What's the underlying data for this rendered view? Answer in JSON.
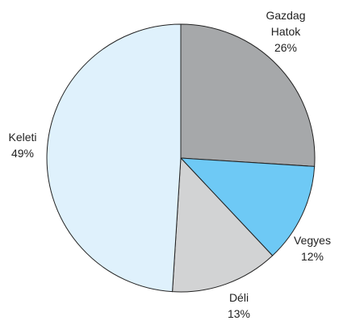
{
  "chart_data": {
    "type": "pie",
    "title": "",
    "slices": [
      {
        "lines": [
          "Gazdag",
          "Hatok",
          "26%"
        ],
        "value": 26,
        "color": "#a6a8aa"
      },
      {
        "lines": [
          "Vegyes",
          "12%"
        ],
        "value": 12,
        "color": "#6ec9f5"
      },
      {
        "lines": [
          "Déli",
          "13%"
        ],
        "value": 13,
        "color": "#d2d3d4"
      },
      {
        "lines": [
          "Keleti",
          "49%"
        ],
        "value": 49,
        "color": "#dff1fc"
      }
    ]
  }
}
